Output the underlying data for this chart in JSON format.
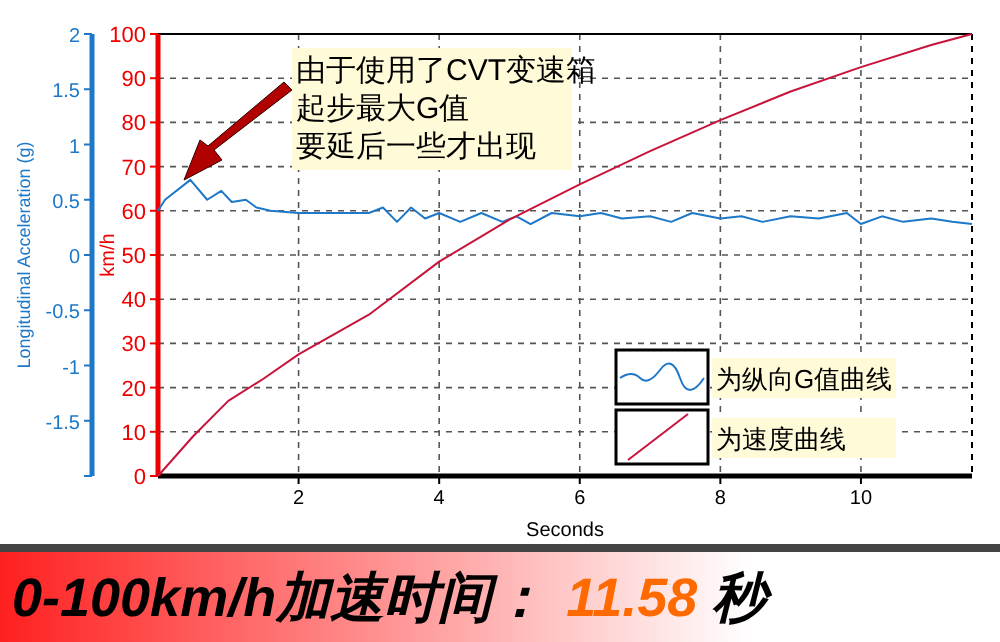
{
  "chart_data": {
    "type": "line",
    "title": "0-100km/h加速时间：",
    "subtitle": "11.58 秒",
    "xlabel": "Seconds",
    "ylabel": "km/h",
    "y2label": "Longitudinal Acceleration (g)",
    "xlim": [
      0,
      11.58
    ],
    "xticks": [
      2,
      4,
      6,
      8,
      10
    ],
    "ylim": [
      0,
      100
    ],
    "yticks": [
      0,
      10,
      20,
      30,
      40,
      50,
      60,
      70,
      80,
      90,
      100
    ],
    "y2lim": [
      -2,
      2
    ],
    "y2ticks": [
      {
        "value": -2,
        "label": null
      },
      -1.5,
      -1,
      -0.5,
      0,
      0.5,
      1,
      1.5,
      2
    ],
    "grid": true,
    "legend": "bottom right",
    "marker": "none",
    "line_style": "solid",
    "annotations": [
      "由于使用了CVT变速箱",
      "起步最大G值",
      "要延后一些才出现"
    ],
    "series": [
      {
        "name": "为纵向G值曲线",
        "color": "#1e78c8",
        "axis": "y2",
        "x": [
          0,
          0.1,
          0.46,
          0.7,
          0.9,
          1.05,
          1.25,
          1.4,
          1.6,
          2,
          2.5,
          3,
          3.2,
          3.4,
          3.6,
          3.8,
          4,
          4.3,
          4.6,
          4.9,
          5.1,
          5.3,
          5.6,
          6,
          6.3,
          6.6,
          7,
          7.3,
          7.6,
          8,
          8.3,
          8.6,
          9,
          9.4,
          9.8,
          10,
          10.3,
          10.6,
          11,
          11.3,
          11.58
        ],
        "values": [
          0.4,
          0.5,
          0.68,
          0.5,
          0.58,
          0.48,
          0.5,
          0.43,
          0.4,
          0.38,
          0.38,
          0.38,
          0.43,
          0.3,
          0.43,
          0.33,
          0.38,
          0.3,
          0.38,
          0.3,
          0.35,
          0.28,
          0.38,
          0.35,
          0.38,
          0.33,
          0.35,
          0.3,
          0.38,
          0.33,
          0.35,
          0.3,
          0.35,
          0.33,
          0.38,
          0.28,
          0.35,
          0.3,
          0.33,
          0.3,
          0.28
        ]
      },
      {
        "name": "为速度曲线",
        "color": "#c8143c",
        "x": [
          0,
          0.5,
          1,
          1.5,
          2,
          3,
          4,
          5,
          6,
          7,
          8,
          9,
          10,
          11,
          11.58
        ],
        "values": [
          0,
          9,
          17,
          22,
          27.5,
          36.5,
          48.5,
          58,
          66,
          73.5,
          80.5,
          87,
          92.5,
          97.5,
          100
        ]
      }
    ]
  }
}
